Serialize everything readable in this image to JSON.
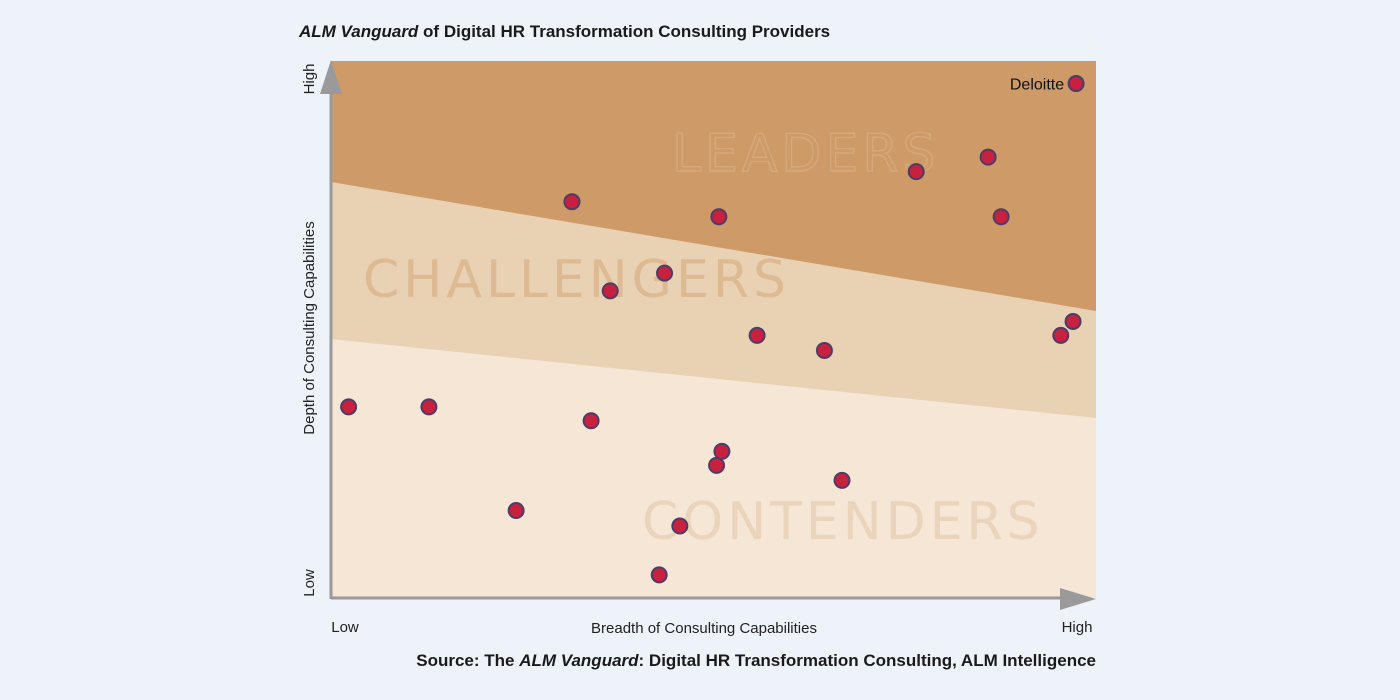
{
  "title": {
    "italic": "ALM Vanguard",
    "rest": " of Digital HR Transformation Consulting Providers"
  },
  "source": {
    "prefix": "Source: The ",
    "italic": "ALM Vanguard",
    "rest": ": Digital HR Transformation Consulting, ALM Intelligence"
  },
  "chart_data": {
    "type": "scatter",
    "title": "ALM Vanguard of Digital HR Transformation Consulting Providers",
    "xlabel": "Breadth of Consulting Capabilities",
    "ylabel": "Depth of Consulting Capabilities",
    "x_ticks": {
      "low": "Low",
      "high": "High"
    },
    "y_ticks": {
      "low": "Low",
      "high": "High"
    },
    "xlim": [
      0,
      100
    ],
    "ylim": [
      0,
      100
    ],
    "zones": [
      {
        "name": "LEADERS",
        "color": "#cd9a68",
        "text_color": "#d6a97c"
      },
      {
        "name": "CHALLENGERS",
        "color": "#e9d1b4",
        "text_color": "#deba93"
      },
      {
        "name": "CONTENDERS",
        "color": "#f5e6d5",
        "text_color": "#ead4bb"
      }
    ],
    "point_color": "#c8213f",
    "points": [
      {
        "x": 97.4,
        "y": 95.8,
        "label": "Deloitte"
      },
      {
        "x": 85.9,
        "y": 82.1,
        "label": ""
      },
      {
        "x": 76.5,
        "y": 79.4,
        "label": ""
      },
      {
        "x": 31.5,
        "y": 73.8,
        "label": ""
      },
      {
        "x": 50.7,
        "y": 71.0,
        "label": ""
      },
      {
        "x": 87.6,
        "y": 71.0,
        "label": ""
      },
      {
        "x": 43.6,
        "y": 60.5,
        "label": ""
      },
      {
        "x": 36.5,
        "y": 57.2,
        "label": ""
      },
      {
        "x": 97.0,
        "y": 51.5,
        "label": ""
      },
      {
        "x": 95.4,
        "y": 48.9,
        "label": ""
      },
      {
        "x": 55.7,
        "y": 48.9,
        "label": ""
      },
      {
        "x": 64.5,
        "y": 46.1,
        "label": ""
      },
      {
        "x": 2.3,
        "y": 35.6,
        "label": ""
      },
      {
        "x": 12.8,
        "y": 35.6,
        "label": ""
      },
      {
        "x": 34.0,
        "y": 33.0,
        "label": ""
      },
      {
        "x": 51.1,
        "y": 27.3,
        "label": ""
      },
      {
        "x": 50.4,
        "y": 24.7,
        "label": ""
      },
      {
        "x": 66.8,
        "y": 21.9,
        "label": ""
      },
      {
        "x": 24.2,
        "y": 16.3,
        "label": ""
      },
      {
        "x": 45.6,
        "y": 13.4,
        "label": ""
      },
      {
        "x": 42.9,
        "y": 4.3,
        "label": ""
      }
    ]
  }
}
